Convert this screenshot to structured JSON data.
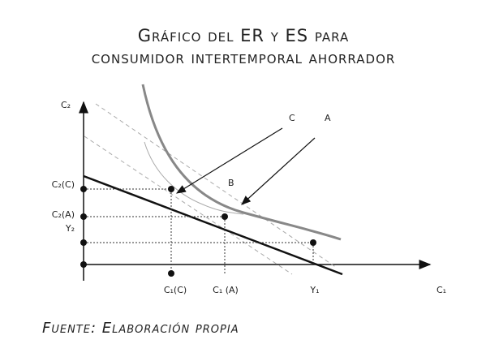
{
  "header": {
    "title_line1": "Gráfico del ER y ES para",
    "title_line2": "consumidor intertemporal ahorrador"
  },
  "axes": {
    "y_label": "C₂",
    "x_label": "C₁"
  },
  "points": {
    "c": "C",
    "a": "A",
    "b": "B"
  },
  "y_labels": [
    "C₂(C)",
    "C₂(A)",
    "Y₂"
  ],
  "x_labels": [
    "C₁(C)",
    "C₁ (A)",
    "Y₁"
  ],
  "footer": "Fuente: Elaboración propia"
}
